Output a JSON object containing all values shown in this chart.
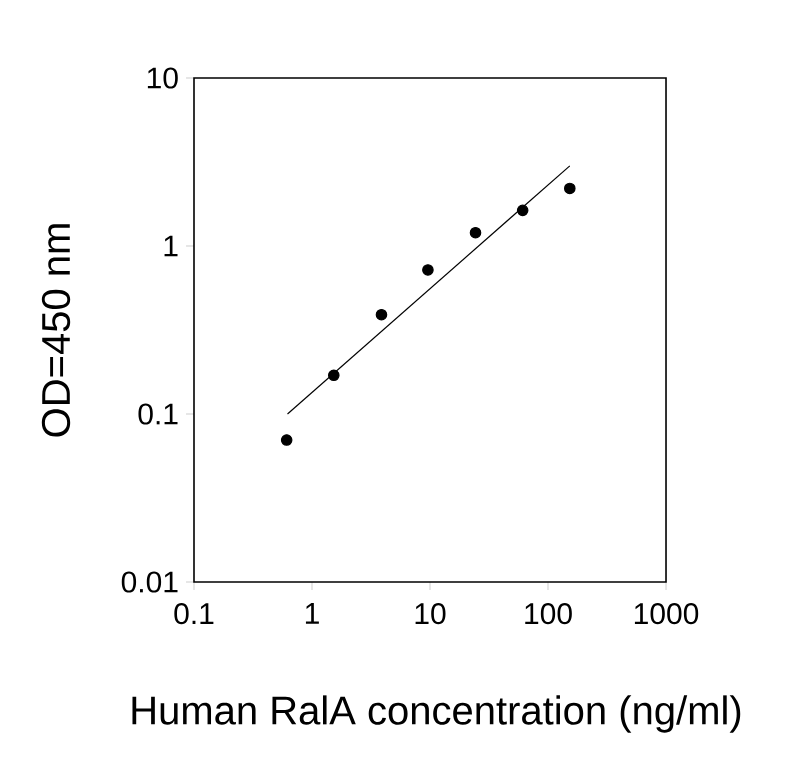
{
  "chart_data": {
    "type": "scatter",
    "xlabel": "Human RalA concentration (ng/ml)",
    "ylabel": "OD=450 nm",
    "log": "xy",
    "xlim": [
      0.1,
      1000
    ],
    "ylim": [
      0.01,
      10
    ],
    "xticks": [
      0.1,
      1,
      10,
      100,
      1000
    ],
    "yticks": [
      0.01,
      0.1,
      1,
      10
    ],
    "grid": false,
    "series": [
      {
        "color": "#000000",
        "marker": "circle",
        "x": [
          0.61,
          1.53,
          3.88,
          9.6,
          24.3,
          61,
          153
        ],
        "values": [
          0.07,
          0.17,
          0.39,
          0.72,
          1.2,
          1.63,
          2.2
        ]
      },
      {
        "type": "line",
        "color": "#000000",
        "marker": "none",
        "line_style": "solid",
        "x": [
          0.62,
          153
        ],
        "values": [
          0.1,
          3.0
        ]
      }
    ]
  }
}
